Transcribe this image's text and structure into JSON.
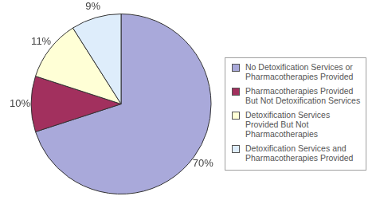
{
  "chart_data": {
    "type": "pie",
    "categories": [
      "No Detoxification Services or Pharmacotherapies Provided",
      "Pharmacotherapies Provided But Not Detoxification Services",
      "Detoxification Services Provided But Not Pharmacotherapies",
      "Detoxification Services and Pharmacotherapies Provided"
    ],
    "values": [
      70,
      10,
      11,
      9
    ],
    "value_labels": [
      "70%",
      "10%",
      "11%",
      "9%"
    ],
    "colors": [
      "#a9a9da",
      "#a2305e",
      "#ffffd6",
      "#deedfb"
    ],
    "data_labels": true,
    "legend": "right"
  }
}
